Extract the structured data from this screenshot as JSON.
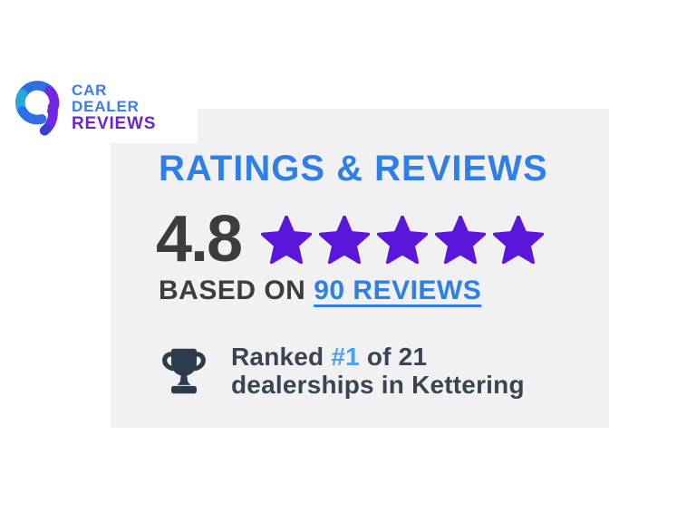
{
  "logo": {
    "line1": "CAR",
    "line2": "DEALER",
    "line3": "REVIEWS",
    "colors": {
      "text_blue": "#3b7de2",
      "text_purple": "#6a26ca",
      "icon_blue": "#2f6fe6",
      "icon_teal": "#27a8da",
      "icon_purple": "#7327e2",
      "icon_tail_tip": "#3c3ed6"
    }
  },
  "card": {
    "background": "#f1f1f4",
    "heading": "RATINGS & REVIEWS",
    "heading_color": "#2e80e8",
    "rating": {
      "score": "4.8",
      "stars_count": 5,
      "star_color": "#5c16da",
      "based_on_prefix": "BASED ON",
      "reviews_link": "90 REVIEWS",
      "link_color": "#2e80e8",
      "text_color": "#3d3d3d"
    },
    "ranking": {
      "prefix": "Ranked",
      "rank": "#1",
      "suffix": "of 21",
      "line2": "dealerships in Kettering",
      "rank_color": "#4aa0f5",
      "text_color": "#3b4551",
      "trophy_color": "#2d3c4b"
    }
  }
}
